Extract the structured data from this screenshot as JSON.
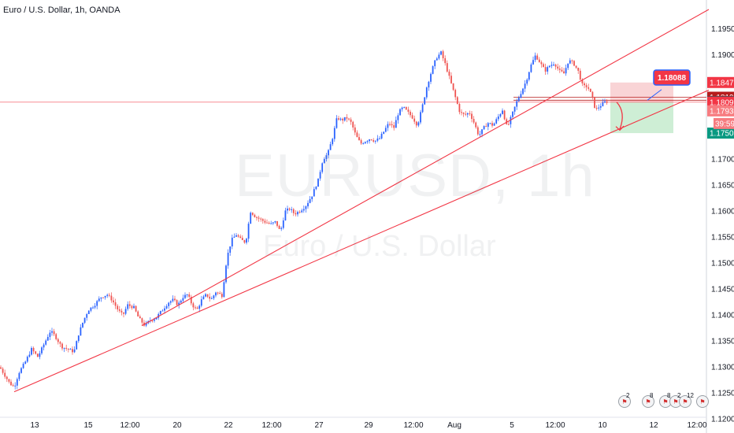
{
  "header": {
    "title": "Euro / U.S. Dollar, 1h, OANDA"
  },
  "watermark": {
    "symbol": "EURUSD, 1h",
    "name": "Euro / U.S. Dollar"
  },
  "colors": {
    "up": "#2962ff",
    "down": "#ef5350",
    "trendline": "#f23645",
    "hline": "#f23645",
    "stop_zone": "#f8c9cc",
    "target_zone": "#c9ecd0"
  },
  "events": [
    {
      "icon": "flag-us-icon",
      "count": "2"
    },
    {
      "icon": "flag-eu-icon",
      "count": "8"
    },
    {
      "icon": "flag-us-icon",
      "count": "8"
    },
    {
      "icon": "flag-eu-icon",
      "count": "2"
    },
    {
      "icon": "flag-us-icon",
      "count": "12"
    },
    {
      "icon": "flag-us-icon",
      "count": ""
    }
  ],
  "chart_data": {
    "type": "candlestick",
    "title": "Euro / U.S. Dollar, 1h, OANDA",
    "symbol": "EURUSD",
    "interval": "1h",
    "ylim": [
      1.1195,
      1.1985
    ],
    "y_ticks": [
      "1.12000",
      "1.12500",
      "1.13000",
      "1.13500",
      "1.14000",
      "1.14500",
      "1.15000",
      "1.15500",
      "1.16000",
      "1.16500",
      "1.17000",
      "1.17500",
      "1.18000",
      "1.18500",
      "1.19000",
      "1.19500"
    ],
    "x_ticks": [
      "13",
      "15",
      "12:00",
      "20",
      "22",
      "12:00",
      "27",
      "29",
      "12:00",
      "Aug",
      "5",
      "12:00",
      "10",
      "12",
      "12:00"
    ],
    "close_path": [
      [
        0,
        1.13
      ],
      [
        6,
        1.1285
      ],
      [
        12,
        1.127
      ],
      [
        18,
        1.1262
      ],
      [
        24,
        1.129
      ],
      [
        32,
        1.131
      ],
      [
        40,
        1.1335
      ],
      [
        48,
        1.132
      ],
      [
        56,
        1.1345
      ],
      [
        64,
        1.137
      ],
      [
        70,
        1.136
      ],
      [
        78,
        1.134
      ],
      [
        86,
        1.1335
      ],
      [
        94,
        1.133
      ],
      [
        100,
        1.1365
      ],
      [
        106,
        1.139
      ],
      [
        112,
        1.141
      ],
      [
        120,
        1.142
      ],
      [
        128,
        1.1435
      ],
      [
        136,
        1.144
      ],
      [
        142,
        1.143
      ],
      [
        150,
        1.141
      ],
      [
        156,
        1.14
      ],
      [
        162,
        1.142
      ],
      [
        170,
        1.1415
      ],
      [
        176,
        1.1395
      ],
      [
        184,
        1.138
      ],
      [
        190,
        1.139
      ],
      [
        198,
        1.1395
      ],
      [
        206,
        1.141
      ],
      [
        214,
        1.1425
      ],
      [
        220,
        1.143
      ],
      [
        226,
        1.142
      ],
      [
        232,
        1.1435
      ],
      [
        238,
        1.144
      ],
      [
        244,
        1.142
      ],
      [
        250,
        1.141
      ],
      [
        256,
        1.143
      ],
      [
        262,
        1.144
      ],
      [
        268,
        1.143
      ],
      [
        274,
        1.1445
      ],
      [
        282,
        1.1438
      ],
      [
        288,
        1.151
      ],
      [
        294,
        1.1545
      ],
      [
        300,
        1.1555
      ],
      [
        306,
        1.1545
      ],
      [
        312,
        1.154
      ],
      [
        318,
        1.16
      ],
      [
        324,
        1.159
      ],
      [
        330,
        1.1585
      ],
      [
        336,
        1.158
      ],
      [
        344,
        1.1575
      ],
      [
        350,
        1.158
      ],
      [
        356,
        1.156
      ],
      [
        362,
        1.16
      ],
      [
        368,
        1.1605
      ],
      [
        374,
        1.1595
      ],
      [
        380,
        1.16
      ],
      [
        388,
        1.161
      ],
      [
        396,
        1.163
      ],
      [
        404,
        1.166
      ],
      [
        410,
        1.17
      ],
      [
        416,
        1.171
      ],
      [
        422,
        1.174
      ],
      [
        428,
        1.178
      ],
      [
        434,
        1.1775
      ],
      [
        440,
        1.178
      ],
      [
        446,
        1.177
      ],
      [
        452,
        1.1745
      ],
      [
        458,
        1.173
      ],
      [
        464,
        1.1735
      ],
      [
        470,
        1.174
      ],
      [
        476,
        1.1735
      ],
      [
        482,
        1.174
      ],
      [
        488,
        1.1755
      ],
      [
        494,
        1.177
      ],
      [
        500,
        1.176
      ],
      [
        506,
        1.179
      ],
      [
        512,
        1.18
      ],
      [
        518,
        1.179
      ],
      [
        524,
        1.178
      ],
      [
        530,
        1.1765
      ],
      [
        536,
        1.18
      ],
      [
        542,
        1.184
      ],
      [
        548,
        1.187
      ],
      [
        554,
        1.1895
      ],
      [
        560,
        1.1905
      ],
      [
        566,
        1.188
      ],
      [
        572,
        1.185
      ],
      [
        578,
        1.182
      ],
      [
        584,
        1.179
      ],
      [
        590,
        1.1785
      ],
      [
        596,
        1.179
      ],
      [
        602,
        1.177
      ],
      [
        608,
        1.1745
      ],
      [
        614,
        1.176
      ],
      [
        620,
        1.177
      ],
      [
        626,
        1.1765
      ],
      [
        632,
        1.178
      ],
      [
        638,
        1.1795
      ],
      [
        644,
        1.176
      ],
      [
        650,
        1.1785
      ],
      [
        656,
        1.181
      ],
      [
        662,
        1.183
      ],
      [
        668,
        1.185
      ],
      [
        674,
        1.188
      ],
      [
        680,
        1.19
      ],
      [
        686,
        1.1885
      ],
      [
        692,
        1.187
      ],
      [
        698,
        1.188
      ],
      [
        704,
        1.1885
      ],
      [
        710,
        1.187
      ],
      [
        716,
        1.1865
      ],
      [
        722,
        1.189
      ],
      [
        728,
        1.1885
      ],
      [
        734,
        1.187
      ],
      [
        740,
        1.184
      ],
      [
        746,
        1.184
      ],
      [
        752,
        1.182
      ],
      [
        756,
        1.1795
      ],
      [
        760,
        1.18
      ],
      [
        764,
        1.1805
      ],
      [
        768,
        1.181
      ],
      [
        772,
        1.1811
      ]
    ],
    "last_price": 1.18111,
    "countdown": "39:59",
    "price_labels": [
      {
        "value": 1.18476,
        "text": "1.18476",
        "color": "#f23645"
      },
      {
        "value": 1.18193,
        "text": "1.18193",
        "color": "#b71c1c"
      },
      {
        "value": 1.18111,
        "text": "1.18111",
        "color": "#434651"
      },
      {
        "value": 1.18098,
        "text": "1.18098",
        "color": "#f23645"
      },
      {
        "value": 1.1793,
        "text": "1.17930",
        "color": "#f77c80"
      },
      {
        "value": 1.17503,
        "text": "1.17503",
        "color": "#089981"
      }
    ],
    "horizontal_lines": [
      1.18098,
      1.18193,
      1.18135
    ],
    "trendlines": [
      {
        "from": [
          18,
          1.1253
        ],
        "to": [
          900,
          1.1833
        ]
      },
      {
        "from": [
          180,
          1.138
        ],
        "to": [
          900,
          1.1988
        ]
      }
    ],
    "position": {
      "entry": 1.18098,
      "stop": 1.18476,
      "target": 1.17503,
      "callout": "1.18088"
    }
  }
}
